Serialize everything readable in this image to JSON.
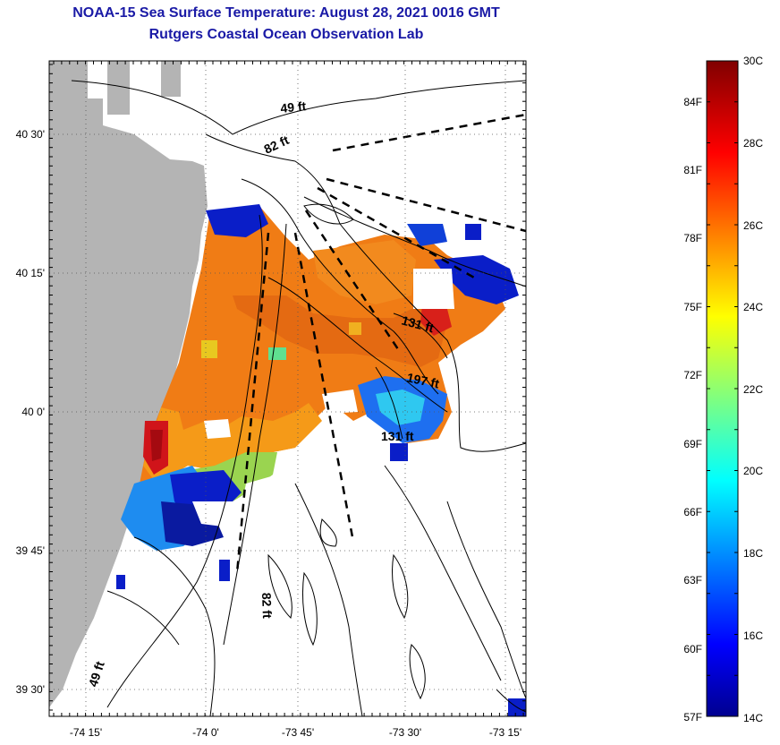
{
  "title": {
    "line1": "NOAA-15 Sea Surface Temperature:  August 28, 2021 0016 GMT",
    "line2": "Rutgers Coastal Ocean Observation Lab"
  },
  "map": {
    "lon_ticks": [
      "-74 15'",
      "-74 0'",
      "-73 45'",
      "-73 30'",
      "-73 15'"
    ],
    "lat_ticks": [
      "40 30'",
      "40 15'",
      "40 0'",
      "39 45'",
      "39 30'"
    ],
    "depth_labels": [
      "49 ft",
      "82 ft",
      "131 ft",
      "197 ft",
      "131 ft",
      "82 ft",
      "49 ft"
    ],
    "land_color": "#b4b4b4"
  },
  "colorbar": {
    "celsius_labels": [
      "30C",
      "28C",
      "26C",
      "24C",
      "22C",
      "20C",
      "18C",
      "16C",
      "14C"
    ],
    "fahrenheit_labels": [
      "84F",
      "81F",
      "78F",
      "75F",
      "72F",
      "69F",
      "66F",
      "63F",
      "60F",
      "57F"
    ],
    "colormap": "jet"
  }
}
